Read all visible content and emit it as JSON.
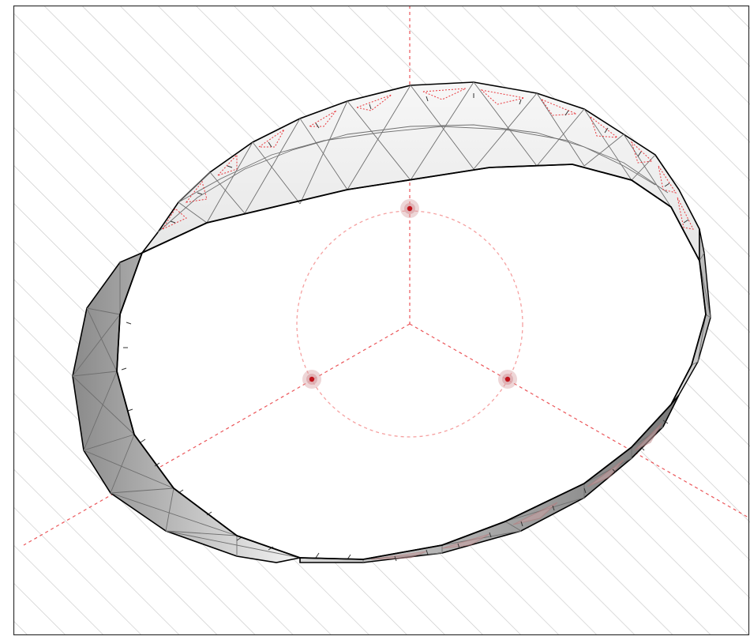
{
  "figure": {
    "kind": "geodesic ring structure with three anchor nodes",
    "nodes": [
      {
        "id": "top-node",
        "color": "#c0141c"
      },
      {
        "id": "left-node",
        "color": "#c0141c"
      },
      {
        "id": "right-node",
        "color": "#c0141c"
      }
    ],
    "colors": {
      "frame": "#333333",
      "hatch": "#c8c8c8",
      "guide": "#e8383d",
      "guide_light": "#f5a0a0",
      "node": "#c0141c",
      "node_halo": "#d9a3a6",
      "mesh_stroke": "#6e6e6e",
      "outline": "#000000",
      "band_dark": "#8a8a8a",
      "band_light": "#f4f4f4",
      "red_tint": "#b8787a"
    }
  }
}
